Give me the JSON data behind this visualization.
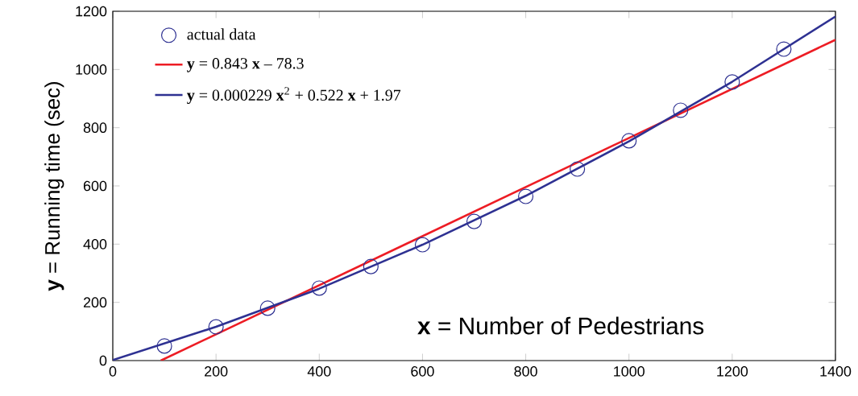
{
  "chart_data": {
    "type": "scatter",
    "xlabel": "**x** = Number of Pedestrians",
    "ylabel": "**y** = Running time (sec)",
    "xlim": [
      0,
      1400
    ],
    "ylim": [
      0,
      1200
    ],
    "xticks": [
      0,
      200,
      400,
      600,
      800,
      1000,
      1200,
      1400
    ],
    "yticks": [
      0,
      200,
      400,
      600,
      800,
      1000,
      1200
    ],
    "legend": "top left",
    "series": [
      {
        "name": "actual data",
        "marker": "circle",
        "color": "#2e3192",
        "x": [
          100,
          200,
          300,
          400,
          500,
          600,
          700,
          800,
          900,
          1000,
          1100,
          1200,
          1300
        ],
        "values": [
          50,
          116,
          180,
          249,
          323,
          398,
          478,
          564,
          658,
          755,
          860,
          957,
          1070
        ]
      },
      {
        "name": "**y** = 0.843 **x** – 78.3",
        "type": "line",
        "marker": "none",
        "line_style": "solid",
        "color": "#ed1c24",
        "x": [
          93,
          1400
        ],
        "values": [
          0,
          1102
        ]
      },
      {
        "name": "**y** = 0.000229 **x**$^{2}$ + 0.522 **x** + 1.97",
        "type": "line",
        "marker": "none",
        "line_style": "solid",
        "color": "#2e3192",
        "x": [
          0,
          200,
          400,
          600,
          800,
          1000,
          1200,
          1400
        ],
        "values": [
          2,
          116,
          247,
          398,
          566,
          753,
          958,
          1182
        ]
      }
    ]
  }
}
